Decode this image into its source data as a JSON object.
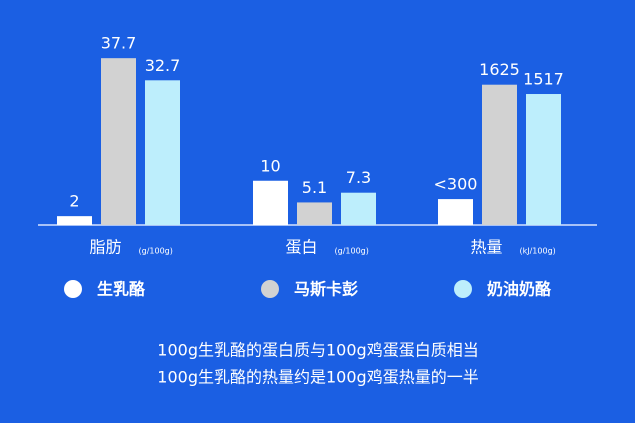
{
  "chart_data": {
    "type": "bar",
    "categories": [
      "脂肪",
      "蛋白",
      "热量"
    ],
    "units": [
      "(g/100g)",
      "(g/100g)",
      "(kJ/100g)"
    ],
    "ylims": [
      [
        0,
        40
      ],
      [
        0,
        40
      ],
      [
        0,
        2050
      ]
    ],
    "series": [
      {
        "name": "生乳酪",
        "color": "#ffffff",
        "values": [
          2,
          10,
          300
        ],
        "value_labels": [
          "2",
          "10",
          "<300"
        ]
      },
      {
        "name": "马斯卡彭",
        "color": "#d2d2d2",
        "values": [
          37.7,
          5.1,
          1625
        ]
      },
      {
        "name": "奶油奶酪",
        "color": "#bdeefc",
        "values": [
          32.7,
          7.3,
          1517
        ]
      }
    ],
    "notes": [
      "100g生乳酪的蛋白质与100g鸡蛋蛋白质相当",
      "100g生乳酪的热量约是100g鸡蛋热量的一半"
    ]
  }
}
